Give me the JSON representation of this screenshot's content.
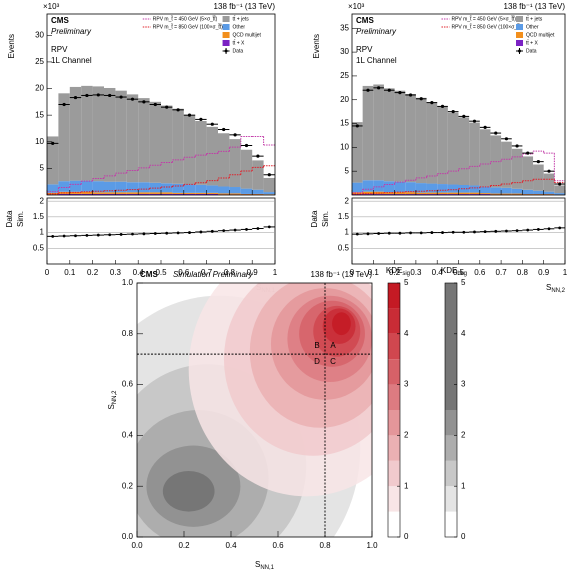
{
  "chart_data": [
    {
      "type": "hist_stack",
      "title": "138 fb⁻¹ (13 TeV)",
      "experiment": "CMS",
      "status": "Preliminary",
      "labels": [
        "RPV",
        "1L Channel"
      ],
      "ylabel": "Events",
      "yexp": "×10³",
      "ratio_ylabel": [
        "Data",
        "Sim."
      ],
      "xlabel": {
        "main": "S",
        "sub": "NN,1"
      },
      "legend": "upper right",
      "bins": [
        0,
        0.05,
        0.1,
        0.15,
        0.2,
        0.25,
        0.3,
        0.35,
        0.4,
        0.45,
        0.5,
        0.55,
        0.6,
        0.65,
        0.7,
        0.75,
        0.8,
        0.85,
        0.9,
        0.95,
        1
      ],
      "xlim": [
        0,
        1
      ],
      "xticks": [
        0,
        0.1,
        0.2,
        0.3,
        0.4,
        0.5,
        0.6,
        0.7,
        0.8,
        0.9,
        1
      ],
      "ylim": [
        0,
        34
      ],
      "yticks": [
        5,
        10,
        15,
        20,
        25,
        30
      ],
      "ratio_ylim": [
        0,
        2.1
      ],
      "ratio_yticks": [
        0.5,
        1,
        1.5,
        2
      ],
      "stack": [
        {
          "name": "tt̄ + X",
          "color": "#7b22c4",
          "values": [
            0.1,
            0.2,
            0.2,
            0.2,
            0.2,
            0.2,
            0.2,
            0.2,
            0.2,
            0.2,
            0.2,
            0.2,
            0.2,
            0.2,
            0.2,
            0.1,
            0.1,
            0.1,
            0.1,
            0.05
          ]
        },
        {
          "name": "QCD multijet",
          "color": "#f28f1c",
          "values": [
            0.3,
            0.4,
            0.4,
            0.4,
            0.3,
            0.3,
            0.3,
            0.3,
            0.3,
            0.3,
            0.3,
            0.2,
            0.2,
            0.2,
            0.2,
            0.2,
            0.2,
            0.1,
            0.1,
            0.1
          ]
        },
        {
          "name": "Other",
          "color": "#5b9be6",
          "values": [
            1.6,
            2.0,
            2.1,
            2.1,
            2.1,
            2.0,
            2.0,
            1.9,
            1.9,
            1.8,
            1.7,
            1.7,
            1.6,
            1.5,
            1.4,
            1.3,
            1.2,
            1.0,
            0.8,
            0.4
          ]
        },
        {
          "name": "tt̄ + jets",
          "color": "#9b9b9b",
          "values": [
            9.0,
            16.5,
            17.6,
            17.8,
            17.8,
            17.6,
            17.1,
            16.5,
            15.8,
            15.2,
            14.6,
            14.1,
            13.0,
            12.0,
            11.0,
            10.0,
            9.0,
            7.3,
            5.5,
            2.65
          ]
        }
      ],
      "signals": [
        {
          "name": "RPV m_t̃ = 450 GeV (5×σ_t̃t̃)",
          "color": "#c23aa8",
          "values": [
            0.6,
            1.4,
            2.0,
            2.6,
            3.1,
            3.6,
            4.1,
            4.6,
            5.1,
            5.6,
            6.1,
            6.6,
            7.1,
            7.5,
            7.8,
            8.2,
            9.0,
            11.0,
            11.0,
            9.4
          ]
        },
        {
          "name": "RPV m_t̃ = 850 GeV (100×σ_t̃t̃)",
          "color": "#e0202a",
          "values": [
            0.2,
            0.4,
            0.5,
            0.6,
            0.7,
            0.8,
            0.9,
            1.0,
            1.1,
            1.3,
            1.5,
            1.7,
            2.0,
            2.3,
            2.7,
            3.2,
            3.8,
            4.5,
            5.2,
            5.5
          ]
        }
      ],
      "data": {
        "name": "Data",
        "values": [
          9.7,
          17,
          18.3,
          18.7,
          18.8,
          18.7,
          18.4,
          18,
          17.5,
          17,
          16.5,
          16,
          15,
          14.2,
          13.3,
          12.3,
          11.3,
          9.3,
          7.3,
          3.8
        ]
      },
      "ratio": {
        "values": [
          0.88,
          0.89,
          0.9,
          0.91,
          0.92,
          0.93,
          0.94,
          0.95,
          0.96,
          0.97,
          0.98,
          0.99,
          1.0,
          1.02,
          1.04,
          1.06,
          1.08,
          1.1,
          1.13,
          1.18
        ]
      }
    },
    {
      "type": "hist_stack",
      "title": "138 fb⁻¹ (13 TeV)",
      "experiment": "CMS",
      "status": "Preliminary",
      "labels": [
        "RPV",
        "1L Channel"
      ],
      "ylabel": "Events",
      "yexp": "×10³",
      "ratio_ylabel": [
        "Data",
        "Sim."
      ],
      "xlabel": {
        "main": "S",
        "sub": "NN,2"
      },
      "legend": "upper right",
      "bins": [
        0,
        0.05,
        0.1,
        0.15,
        0.2,
        0.25,
        0.3,
        0.35,
        0.4,
        0.45,
        0.5,
        0.55,
        0.6,
        0.65,
        0.7,
        0.75,
        0.8,
        0.85,
        0.9,
        0.95,
        1
      ],
      "xlim": [
        0,
        1
      ],
      "xticks": [
        0,
        0.1,
        0.2,
        0.3,
        0.4,
        0.5,
        0.6,
        0.7,
        0.8,
        0.9,
        1
      ],
      "ylim": [
        0,
        38
      ],
      "yticks": [
        5,
        10,
        15,
        20,
        25,
        30,
        35
      ],
      "ratio_ylim": [
        0,
        2.1
      ],
      "ratio_yticks": [
        0.5,
        1,
        1.5,
        2
      ],
      "stack": [
        {
          "name": "tt̄ + X",
          "color": "#7b22c4",
          "values": [
            0.2,
            0.2,
            0.2,
            0.2,
            0.2,
            0.2,
            0.2,
            0.2,
            0.2,
            0.2,
            0.2,
            0.2,
            0.2,
            0.1,
            0.1,
            0.1,
            0.1,
            0.1,
            0.1,
            0.05
          ]
        },
        {
          "name": "QCD multijet",
          "color": "#f28f1c",
          "values": [
            0.4,
            0.5,
            0.5,
            0.4,
            0.4,
            0.4,
            0.3,
            0.3,
            0.3,
            0.3,
            0.3,
            0.3,
            0.2,
            0.2,
            0.2,
            0.2,
            0.1,
            0.1,
            0.1,
            0.05
          ]
        },
        {
          "name": "Other",
          "color": "#5b9be6",
          "values": [
            2.0,
            2.4,
            2.4,
            2.3,
            2.2,
            2.1,
            2.0,
            1.9,
            1.8,
            1.7,
            1.6,
            1.5,
            1.4,
            1.3,
            1.2,
            1.0,
            0.9,
            0.7,
            0.5,
            0.3
          ]
        },
        {
          "name": "tt̄ + jets",
          "color": "#9b9b9b",
          "values": [
            12.7,
            19.8,
            20.1,
            19.5,
            19.1,
            18.5,
            17.9,
            17.0,
            16.3,
            15.1,
            14.2,
            13.2,
            12.0,
            10.9,
            9.7,
            8.4,
            7.0,
            5.5,
            3.8,
            1.6
          ]
        }
      ],
      "signals": [
        {
          "name": "RPV m_t̃ = 450 GeV (5×σ_t̃t̃)",
          "color": "#c23aa8",
          "values": [
            0.5,
            1.2,
            1.7,
            2.2,
            2.7,
            3.1,
            3.6,
            4.0,
            4.5,
            5.0,
            5.5,
            6.0,
            6.5,
            7.0,
            7.5,
            8.0,
            8.6,
            9.2,
            8.8,
            3.0
          ]
        },
        {
          "name": "RPV m_t̃ = 850 GeV (100×σ_t̃t̃)",
          "color": "#e0202a",
          "values": [
            0.2,
            0.3,
            0.4,
            0.5,
            0.6,
            0.7,
            0.8,
            0.9,
            1.0,
            1.1,
            1.3,
            1.5,
            1.7,
            2.0,
            2.3,
            2.6,
            3.0,
            3.3,
            3.3,
            2.6
          ]
        }
      ],
      "data": {
        "name": "Data",
        "values": [
          14.5,
          22,
          22.5,
          22,
          21.5,
          21,
          20.2,
          19.4,
          18.6,
          17.5,
          16.5,
          15.5,
          14.2,
          13,
          11.8,
          10.3,
          8.8,
          7,
          5,
          2.3
        ]
      },
      "ratio": {
        "values": [
          0.95,
          0.96,
          0.97,
          0.98,
          0.98,
          0.99,
          0.99,
          1.0,
          1.0,
          1.01,
          1.01,
          1.02,
          1.03,
          1.04,
          1.05,
          1.06,
          1.08,
          1.1,
          1.12,
          1.15
        ]
      }
    },
    {
      "type": "contour",
      "title": "138 fb⁻¹ (13 TeV)",
      "experiment": "CMS",
      "status": "Simulation Preliminary",
      "xlabel": {
        "main": "S",
        "sub": "NN,1"
      },
      "ylabel": {
        "main": "S",
        "sub": "NN,2"
      },
      "xlim": [
        0,
        1
      ],
      "ylim": [
        0,
        1
      ],
      "xticks": [
        {
          "value": 0,
          "label": "0.0"
        },
        0.2,
        0.4,
        0.6,
        0.8,
        {
          "value": 1,
          "label": "1.0"
        }
      ],
      "yticks": [
        {
          "value": 0,
          "label": "0.0"
        },
        0.2,
        0.4,
        0.6,
        0.8,
        {
          "value": 1,
          "label": "1.0"
        }
      ],
      "cuts": {
        "x": 0.8,
        "y": 0.72
      },
      "regions": [
        "A",
        "B",
        "C",
        "D"
      ],
      "clim": [
        0,
        5
      ],
      "cticks": [
        0,
        1,
        2,
        3,
        4,
        5
      ],
      "fields": [
        {
          "name": {
            "main": "KDE",
            "sub": "bkg"
          },
          "colors": [
            "#ffffff",
            "#111111"
          ],
          "levels": [
            0.5,
            1,
            1.5,
            2,
            2.5
          ],
          "contours": [
            {
              "cx": 0.35,
              "cy": 0.35,
              "rx": 0.6,
              "ry": 0.6
            },
            {
              "cx": 0.3,
              "cy": 0.28,
              "rx": 0.42,
              "ry": 0.4
            },
            {
              "cx": 0.26,
              "cy": 0.23,
              "rx": 0.3,
              "ry": 0.27
            },
            {
              "cx": 0.24,
              "cy": 0.2,
              "rx": 0.2,
              "ry": 0.16
            },
            {
              "cx": 0.22,
              "cy": 0.18,
              "rx": 0.11,
              "ry": 0.08
            }
          ]
        },
        {
          "name": {
            "main": "KDE",
            "sub": "sig"
          },
          "colors": [
            "#ffffff",
            "#c41a24"
          ],
          "levels": [
            0.5,
            1,
            1.5,
            2,
            2.5,
            3,
            3.5,
            4,
            4.5
          ],
          "contours": [
            {
              "cx": 0.72,
              "cy": 0.66,
              "rx": 0.5,
              "ry": 0.5
            },
            {
              "cx": 0.75,
              "cy": 0.7,
              "rx": 0.38,
              "ry": 0.38
            },
            {
              "cx": 0.78,
              "cy": 0.73,
              "rx": 0.3,
              "ry": 0.3
            },
            {
              "cx": 0.8,
              "cy": 0.76,
              "rx": 0.23,
              "ry": 0.22
            },
            {
              "cx": 0.82,
              "cy": 0.78,
              "rx": 0.18,
              "ry": 0.17
            },
            {
              "cx": 0.83,
              "cy": 0.8,
              "rx": 0.14,
              "ry": 0.13
            },
            {
              "cx": 0.85,
              "cy": 0.81,
              "rx": 0.1,
              "ry": 0.1
            },
            {
              "cx": 0.86,
              "cy": 0.83,
              "rx": 0.07,
              "ry": 0.07
            },
            {
              "cx": 0.87,
              "cy": 0.84,
              "rx": 0.04,
              "ry": 0.045
            }
          ]
        }
      ]
    }
  ]
}
